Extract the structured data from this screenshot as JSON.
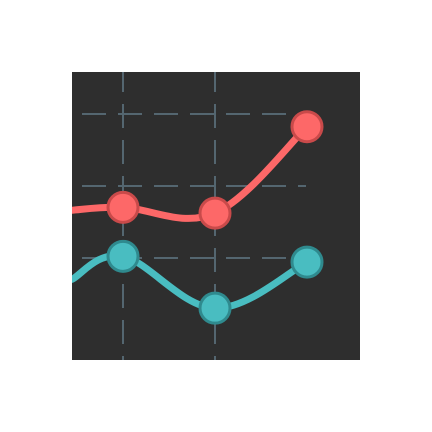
{
  "chart_data": {
    "type": "line",
    "x": [
      1,
      2,
      3,
      4
    ],
    "ylim": [
      0,
      10
    ],
    "grid": true,
    "grid_style": "dashed",
    "background": "#2e2e2e",
    "grid_color": "#546670",
    "series": [
      {
        "color": "#fd6868",
        "marker_edge": "#c94a4a",
        "values": [
          5.2,
          5.3,
          5.1,
          8.1
        ]
      },
      {
        "color": "#49bdc1",
        "marker_edge": "#2f8a8e",
        "values": [
          2.8,
          3.6,
          1.8,
          3.4
        ]
      }
    ]
  }
}
